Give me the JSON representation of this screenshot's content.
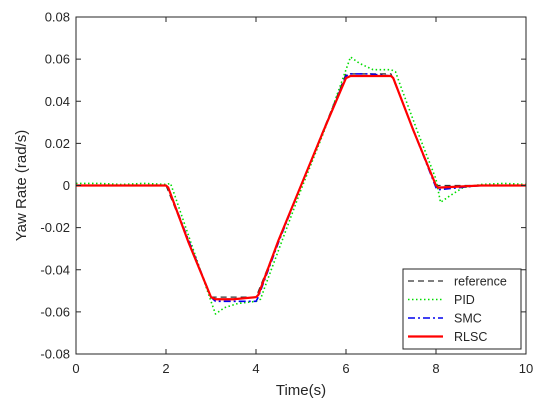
{
  "chart_data": {
    "type": "line",
    "title": "",
    "xlabel": "Time(s)",
    "ylabel": "Yaw Rate (rad/s)",
    "xlim": [
      0,
      10
    ],
    "ylim": [
      -0.08,
      0.08
    ],
    "xticks": [
      0,
      2,
      4,
      6,
      8,
      10
    ],
    "yticks": [
      -0.08,
      -0.06,
      -0.04,
      -0.02,
      0,
      0.02,
      0.04,
      0.06,
      0.08
    ],
    "xtick_labels": [
      "0",
      "2",
      "4",
      "6",
      "8",
      "10"
    ],
    "ytick_labels": [
      "-0.08",
      "-0.06",
      "-0.04",
      "-0.02",
      "0",
      "0.02",
      "0.04",
      "0.06",
      "0.08"
    ],
    "grid": false,
    "legend_position": "bottom-right",
    "series": [
      {
        "name": "reference",
        "color": "#333333",
        "dash": "dashed",
        "x": [
          0,
          2,
          3,
          4,
          6,
          7,
          8,
          10
        ],
        "y": [
          0,
          0,
          -0.053,
          -0.053,
          0.053,
          0.053,
          0,
          0
        ]
      },
      {
        "name": "PID",
        "color": "#00dd00",
        "dash": "dotted",
        "x": [
          0,
          0.5,
          1.0,
          1.5,
          2.0,
          2.1,
          2.2,
          2.6,
          3.0,
          3.1,
          3.3,
          3.6,
          4.0,
          4.1,
          4.2,
          4.6,
          5.0,
          5.5,
          6.0,
          6.1,
          6.3,
          6.6,
          7.0,
          7.1,
          7.2,
          7.6,
          8.0,
          8.1,
          8.3,
          8.6,
          9.0,
          9.5,
          10.0
        ],
        "y": [
          0.001,
          0.001,
          0.0005,
          0.001,
          0.0005,
          0.001,
          -0.005,
          -0.03,
          -0.055,
          -0.061,
          -0.058,
          -0.056,
          -0.055,
          -0.054,
          -0.048,
          -0.025,
          -0.002,
          0.025,
          0.055,
          0.061,
          0.058,
          0.055,
          0.055,
          0.054,
          0.048,
          0.025,
          0.003,
          -0.008,
          -0.005,
          -0.001,
          0.0005,
          0.001,
          0.0005
        ]
      },
      {
        "name": "SMC",
        "color": "#0000ee",
        "dash": "dashdot",
        "x": [
          0,
          1.0,
          2.0,
          2.05,
          2.5,
          3.0,
          3.1,
          3.5,
          4.0,
          4.05,
          4.5,
          5.0,
          5.5,
          6.0,
          6.1,
          6.5,
          7.0,
          7.05,
          7.5,
          8.0,
          8.05,
          9.0,
          10.0
        ],
        "y": [
          0,
          0,
          0,
          -0.001,
          -0.026,
          -0.053,
          -0.055,
          -0.055,
          -0.055,
          -0.053,
          -0.027,
          0,
          0.026,
          0.052,
          0.053,
          0.053,
          0.052,
          0.051,
          0.026,
          -0.001,
          -0.002,
          0,
          0
        ]
      },
      {
        "name": "RLSC",
        "color": "#ff0000",
        "dash": "solid",
        "x": [
          0,
          1.0,
          2.0,
          2.05,
          2.5,
          3.0,
          3.1,
          3.5,
          4.0,
          4.05,
          4.5,
          5.0,
          5.5,
          6.0,
          6.1,
          6.5,
          7.0,
          7.05,
          7.5,
          8.0,
          8.05,
          9.0,
          10.0
        ],
        "y": [
          0,
          0,
          0,
          -0.001,
          -0.027,
          -0.053,
          -0.054,
          -0.054,
          -0.053,
          -0.052,
          -0.026,
          0,
          0.026,
          0.051,
          0.052,
          0.052,
          0.052,
          0.051,
          0.026,
          0,
          -0.001,
          0,
          0
        ]
      }
    ]
  }
}
